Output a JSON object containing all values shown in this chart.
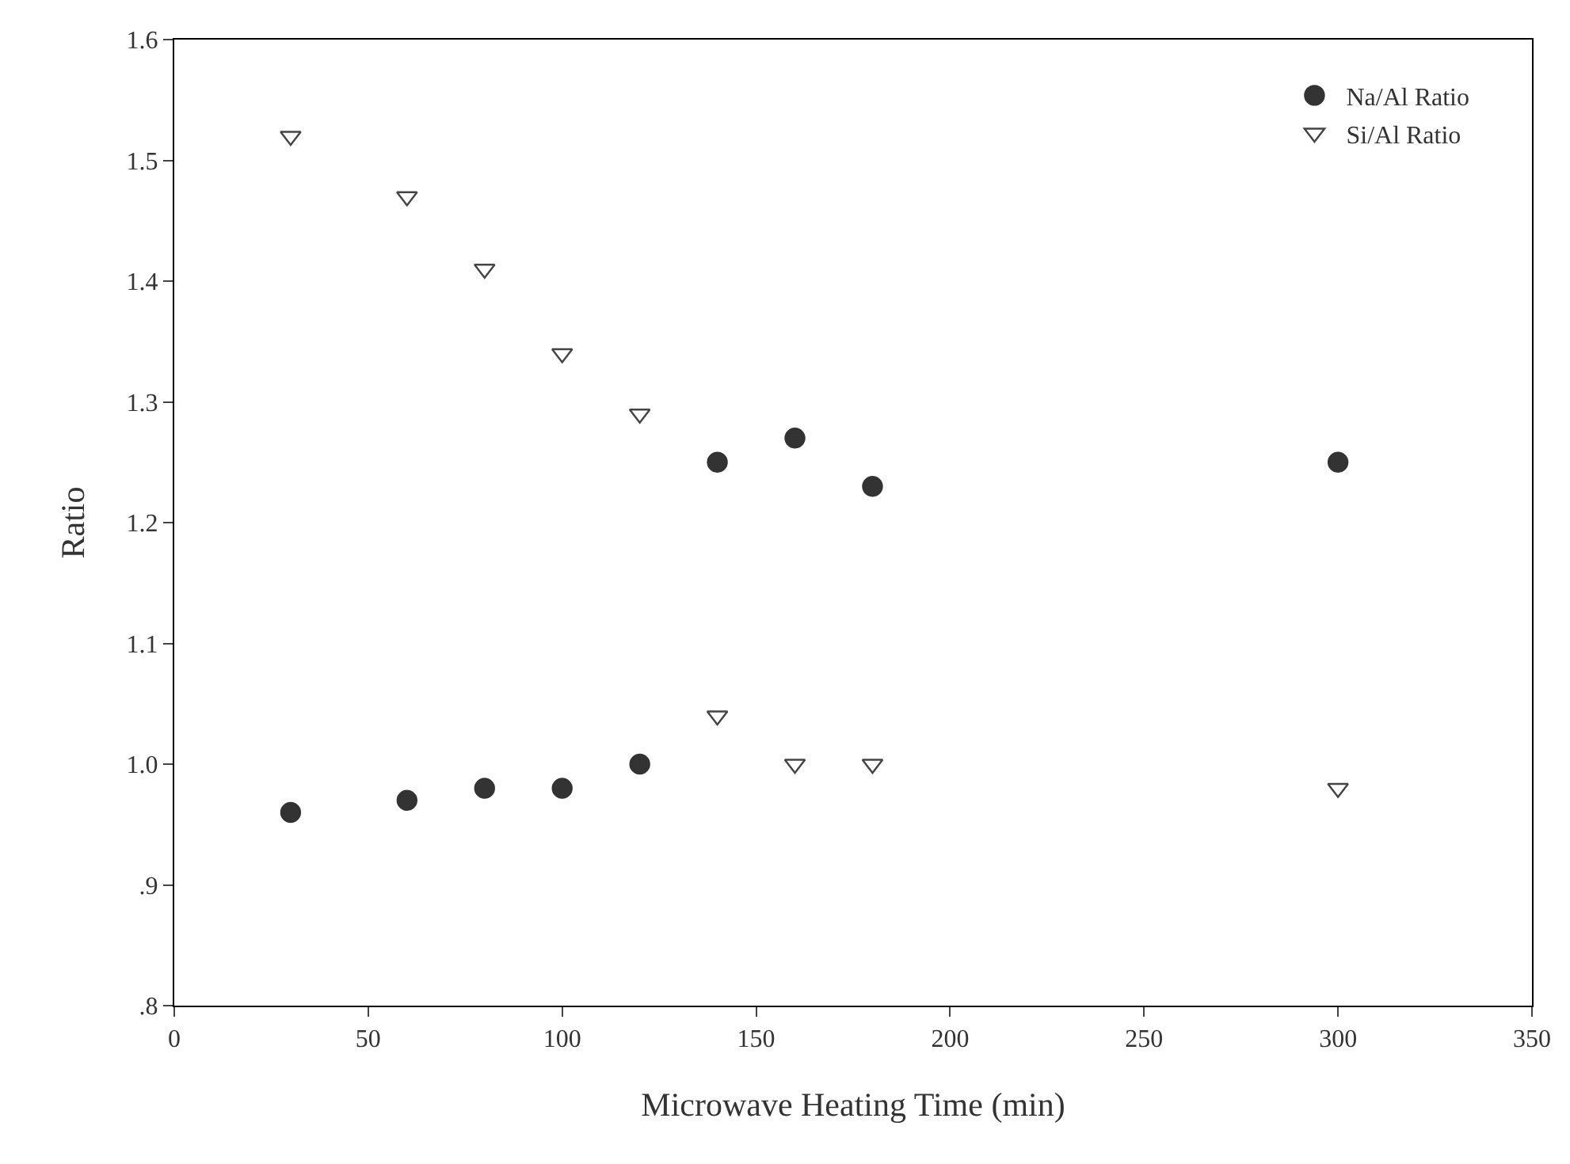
{
  "chart_data": {
    "type": "scatter",
    "xlabel": "Microwave Heating Time (min)",
    "ylabel": "Ratio",
    "xlim": [
      0,
      350
    ],
    "xticks": [
      0,
      50,
      100,
      150,
      200,
      250,
      300,
      350
    ],
    "ylim": [
      0.8,
      1.6
    ],
    "yticks": [
      {
        "value": 0.8,
        "label": ".8"
      },
      {
        "value": 0.9,
        "label": ".9"
      },
      {
        "value": 1.0,
        "label": "1.0"
      },
      {
        "value": 1.1,
        "label": "1.1"
      },
      {
        "value": 1.2,
        "label": "1.2"
      },
      {
        "value": 1.3,
        "label": "1.3"
      },
      {
        "value": 1.4,
        "label": "1.4"
      },
      {
        "value": 1.5,
        "label": "1.5"
      },
      {
        "value": 1.6,
        "label": "1.6"
      }
    ],
    "x": [
      30,
      60,
      80,
      100,
      120,
      140,
      160,
      180,
      300
    ],
    "series": [
      {
        "name": "Na/Al Ratio",
        "color": "#333333",
        "marker": "circle",
        "values": [
          0.96,
          0.97,
          0.98,
          0.98,
          1.0,
          1.25,
          1.27,
          1.23,
          1.25
        ]
      },
      {
        "name": "Si/Al Ratio",
        "color": "#444444",
        "marker": "triangle-down-open",
        "values": [
          1.52,
          1.47,
          1.41,
          1.34,
          1.29,
          1.04,
          1.0,
          1.0,
          0.98
        ]
      }
    ],
    "legend": "top right"
  }
}
